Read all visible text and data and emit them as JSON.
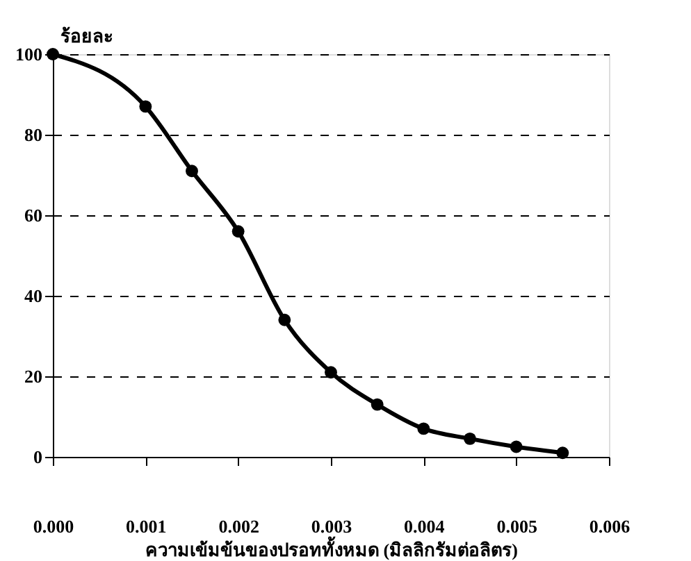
{
  "chart_data": {
    "type": "line",
    "xlabel": "ความเข้มข้นของปรอททั้งหมด (มิลลิกรัมต่อลิตร)",
    "ylabel": "ร้อยละ",
    "x": [
      0,
      0.001,
      0.0015,
      0.002,
      0.0025,
      0.003,
      0.0035,
      0.004,
      0.0045,
      0.005,
      0.0055
    ],
    "series": [
      {
        "color": "#000000",
        "values": [
          100,
          87,
          71,
          56,
          34,
          21,
          13,
          7,
          4.5,
          2.5,
          1
        ]
      }
    ],
    "xlim": [
      0,
      0.006
    ],
    "xticks": [
      {
        "value": 0,
        "label": "0.000"
      },
      {
        "value": 0.001,
        "label": "0.001"
      },
      {
        "value": 0.002,
        "label": "0.002"
      },
      {
        "value": 0.003,
        "label": "0.003"
      },
      {
        "value": 0.004,
        "label": "0.004"
      },
      {
        "value": 0.005,
        "label": "0.005"
      },
      {
        "value": 0.006,
        "label": "0.006"
      }
    ],
    "ylim": [
      0,
      100
    ],
    "yticks": [
      0,
      20,
      40,
      60,
      80,
      100
    ],
    "grid": "y",
    "marker": "circle",
    "line_style": "solid"
  }
}
